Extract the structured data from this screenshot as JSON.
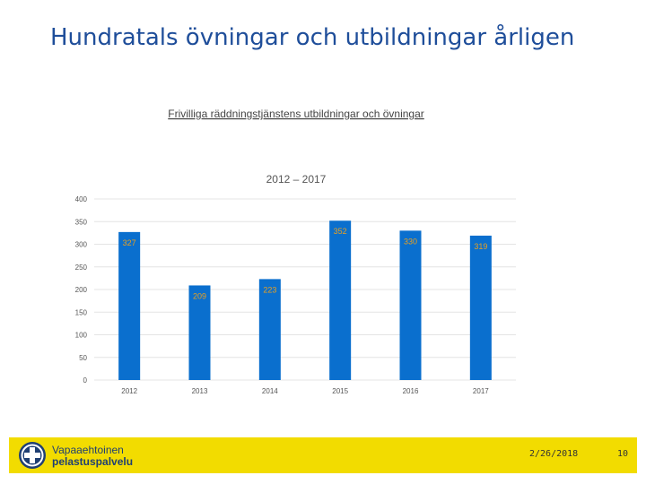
{
  "slide": {
    "title": "Hundratals övningar och utbildningar årligen"
  },
  "chart_data": {
    "type": "bar",
    "title": "Frivilliga räddningstjänstens utbildningar och övningar",
    "subtitle": "2012 – 2017",
    "categories": [
      "2012",
      "2013",
      "2014",
      "2015",
      "2016",
      "2017"
    ],
    "values": [
      327,
      209,
      223,
      352,
      330,
      319
    ],
    "ylim": [
      0,
      400
    ],
    "yticks": [
      0,
      50,
      100,
      150,
      200,
      250,
      300,
      350,
      400
    ],
    "xlabel": "",
    "ylabel": "",
    "grid": true,
    "colors": {
      "bar": "#0a6fce",
      "label": "#e8a020",
      "grid": "#e4e4e4",
      "axis_text": "#555555"
    }
  },
  "footer": {
    "logo_line1": "Vapaaehtoinen",
    "logo_line2": "pelastuspalvelu",
    "date": "2/26/2018",
    "page_number": "10",
    "colors": {
      "band": "#f2dc00",
      "logo": "#1f3f73"
    }
  }
}
